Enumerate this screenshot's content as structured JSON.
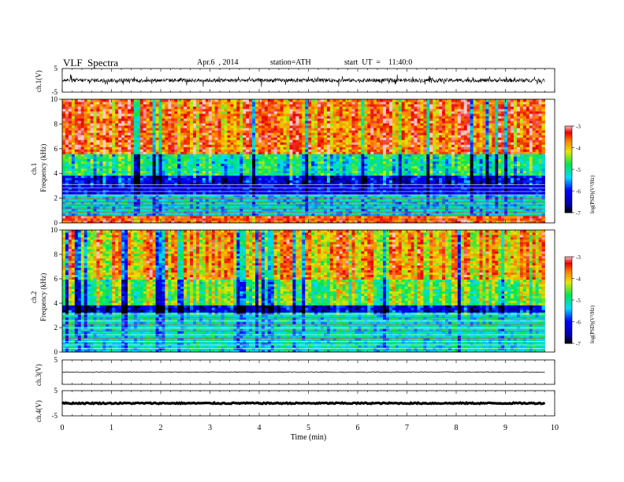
{
  "header": {
    "title": "VLF  Spectra",
    "date": "Apr.6  , 2014",
    "station": "station=ATH",
    "start": "start  UT  =    11:40:0"
  },
  "chart_data": [
    {
      "type": "line",
      "panel": "ch1-waveform",
      "ylabel": "ch.1(V)",
      "ylim": [
        -5,
        5
      ],
      "yticks": [
        "5",
        "-5"
      ],
      "description_level": "noisy waveform around 0 V, amplitude about 1-3 V",
      "xlim": [
        0,
        10
      ]
    },
    {
      "type": "heatmap",
      "panel": "ch1-spectrogram",
      "ylabel_channel": "ch.1",
      "ylabel": "Frequency  (kHz)",
      "ylim": [
        0,
        10
      ],
      "yticks": [
        "0",
        "2",
        "4",
        "6",
        "8",
        "10"
      ],
      "xlim": [
        0,
        9.8
      ],
      "colorbar": {
        "label": "log(PSD)(V²/Hz)",
        "range": [
          -7,
          -3
        ],
        "ticks": [
          "-3",
          "-4",
          "-5",
          "-6",
          "-7"
        ]
      },
      "bands_khz": [
        {
          "from": 0,
          "to": 0.6,
          "level": -3.5
        },
        {
          "from": 0.6,
          "to": 2.4,
          "level": -5.3
        },
        {
          "from": 2.4,
          "to": 3.8,
          "level": -6.2
        },
        {
          "from": 3.8,
          "to": 5.5,
          "level": -5.0
        },
        {
          "from": 5.5,
          "to": 10,
          "level": -3.6
        }
      ]
    },
    {
      "type": "heatmap",
      "panel": "ch2-spectrogram",
      "ylabel_channel": "ch.2",
      "ylabel": "Frequency  (kHz)",
      "ylim": [
        0,
        10
      ],
      "yticks": [
        "0",
        "2",
        "4",
        "6",
        "8",
        "10"
      ],
      "xlim": [
        0,
        9.8
      ],
      "colorbar": {
        "label": "log(PSD)(V²/Hz)",
        "range": [
          -7,
          -3
        ],
        "ticks": [
          "-3",
          "-4",
          "-5",
          "-6",
          "-7"
        ]
      },
      "bands_khz": [
        {
          "from": 0,
          "to": 0.6,
          "level": -5.2
        },
        {
          "from": 0.6,
          "to": 3.2,
          "level": -5.2
        },
        {
          "from": 3.2,
          "to": 3.9,
          "level": -6.3
        },
        {
          "from": 3.9,
          "to": 6.0,
          "level": -4.6
        },
        {
          "from": 6.0,
          "to": 10,
          "level": -3.9
        }
      ]
    },
    {
      "type": "line",
      "panel": "ch3-waveform",
      "ylabel": "ch.3(V)",
      "ylim": [
        -5,
        5
      ],
      "yticks": [
        "5"
      ],
      "level": 0
    },
    {
      "type": "line",
      "panel": "ch4-waveform",
      "ylabel": "ch.4(V)",
      "ylim": [
        -5,
        5
      ],
      "yticks": [
        "5",
        "-5"
      ],
      "level": 0
    }
  ],
  "xaxis": {
    "label": "Time  (min)",
    "ticks": [
      "0",
      "1",
      "2",
      "3",
      "4",
      "5",
      "6",
      "7",
      "8",
      "9",
      "10"
    ],
    "range": [
      0,
      10
    ]
  }
}
